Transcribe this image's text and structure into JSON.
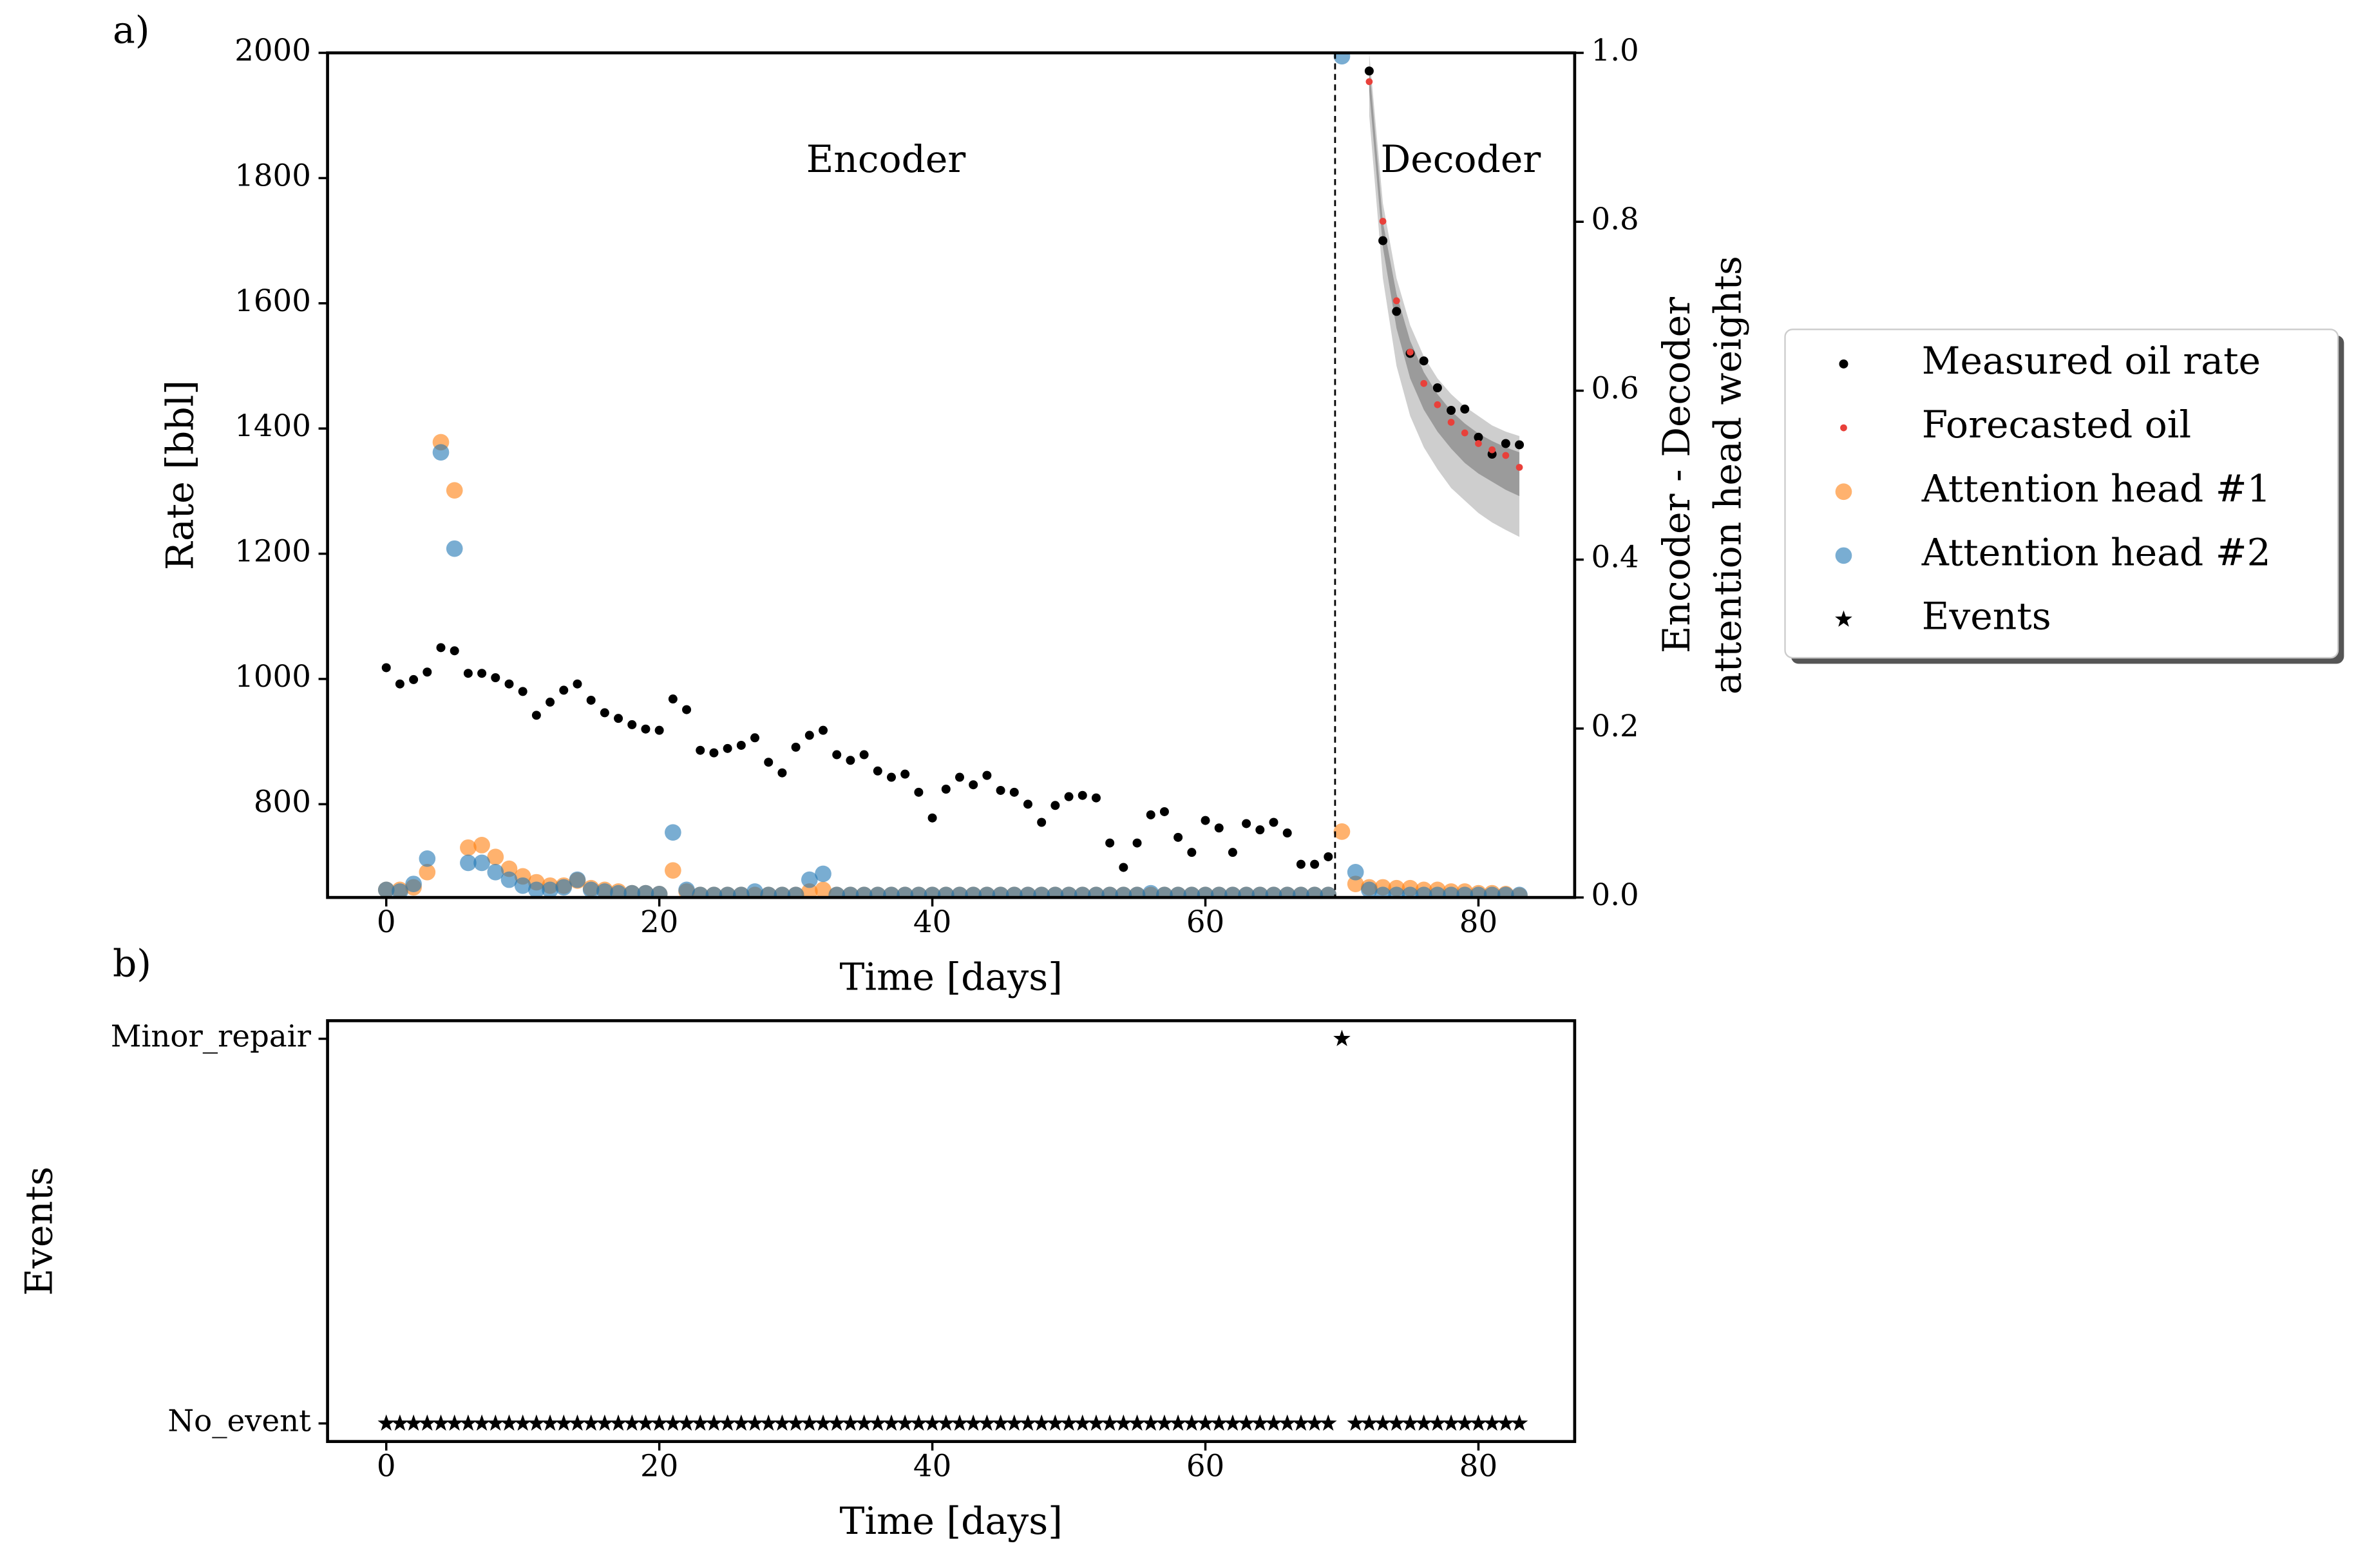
{
  "chart_data": [
    {
      "type": "scatter",
      "panel_label": "a)",
      "xlabel": "Time [days]",
      "ylabel": "Rate [bbl]",
      "y2label": [
        "Encoder - Decoder",
        "attention head weights"
      ],
      "xlim": [
        -4.3,
        87.05
      ],
      "xticks": [
        0,
        20,
        40,
        60,
        80
      ],
      "ylim": [
        651,
        2000
      ],
      "yticks": [
        800,
        1000,
        1200,
        1400,
        1600,
        1800,
        2000
      ],
      "y2lim": [
        0,
        1
      ],
      "y2ticks": [
        {
          "value": 0,
          "label": "0.0"
        },
        {
          "value": 0.2,
          "label": "0.2"
        },
        {
          "value": 0.4,
          "label": "0.4"
        },
        {
          "value": 0.6,
          "label": "0.6"
        },
        {
          "value": 0.8,
          "label": "0.8"
        },
        {
          "value": 1,
          "label": "1.0"
        }
      ],
      "grid": false,
      "vline": 69.5,
      "annotations": [
        {
          "text": "Encoder",
          "x": 36.6,
          "y": 1825
        },
        {
          "text": "Decoder",
          "x": 78.7,
          "y": 1825
        }
      ],
      "x": [
        0,
        1,
        2,
        3,
        4,
        5,
        6,
        7,
        8,
        9,
        10,
        11,
        12,
        13,
        14,
        15,
        16,
        17,
        18,
        19,
        20,
        21,
        22,
        23,
        24,
        25,
        26,
        27,
        28,
        29,
        30,
        31,
        32,
        33,
        34,
        35,
        36,
        37,
        38,
        39,
        40,
        41,
        42,
        43,
        44,
        45,
        46,
        47,
        48,
        49,
        50,
        51,
        52,
        53,
        54,
        55,
        56,
        57,
        58,
        59,
        60,
        61,
        62,
        63,
        64,
        65,
        66,
        67,
        68,
        69,
        70,
        71,
        72,
        73,
        74,
        75,
        76,
        77,
        78,
        79,
        80,
        81,
        82,
        83
      ],
      "bands": [
        {
          "color": "#bdbdbd",
          "x": [
            72,
            73,
            74,
            75,
            76,
            77,
            78,
            79,
            80,
            81,
            82,
            83
          ],
          "lower": [
            1900,
            1640,
            1500,
            1420,
            1370,
            1335,
            1305,
            1285,
            1265,
            1250,
            1238,
            1227
          ],
          "upper": [
            2000,
            1760,
            1640,
            1565,
            1515,
            1480,
            1455,
            1435,
            1420,
            1405,
            1395,
            1388
          ]
        },
        {
          "color": "#8a8a8a",
          "x": [
            72,
            73,
            74,
            75,
            76,
            77,
            78,
            79,
            80,
            81,
            82,
            83
          ],
          "lower": [
            1940,
            1690,
            1560,
            1480,
            1430,
            1395,
            1368,
            1345,
            1328,
            1315,
            1302,
            1292
          ],
          "upper": [
            1980,
            1730,
            1615,
            1540,
            1490,
            1455,
            1428,
            1408,
            1392,
            1380,
            1370,
            1362
          ]
        }
      ],
      "series": [
        {
          "name": "Measured oil rate",
          "color": "#000000",
          "marker": "dot",
          "values": [
            1018,
            992,
            999,
            1011,
            1050,
            1045,
            1009,
            1009,
            1002,
            992,
            980,
            942,
            963,
            982,
            992,
            966,
            946,
            937,
            927,
            920,
            918,
            968,
            951,
            886,
            882,
            889,
            894,
            906,
            867,
            850,
            891,
            910,
            918,
            879,
            870,
            879,
            853,
            843,
            848,
            819,
            778,
            824,
            843,
            831,
            846,
            822,
            819,
            800,
            771,
            798,
            812,
            814,
            810,
            738,
            699,
            738,
            783,
            788,
            747,
            723,
            774,
            762,
            723,
            769,
            759,
            771,
            754,
            704,
            704,
            716,
            null,
            null,
            1971,
            1700,
            1587,
            1520,
            1508,
            1465,
            1429,
            1431,
            1386,
            1359,
            1376,
            1374
          ]
        },
        {
          "name": "Forecasted oil",
          "color": "#e8403a",
          "marker": "small",
          "values": [
            null,
            null,
            null,
            null,
            null,
            null,
            null,
            null,
            null,
            null,
            null,
            null,
            null,
            null,
            null,
            null,
            null,
            null,
            null,
            null,
            null,
            null,
            null,
            null,
            null,
            null,
            null,
            null,
            null,
            null,
            null,
            null,
            null,
            null,
            null,
            null,
            null,
            null,
            null,
            null,
            null,
            null,
            null,
            null,
            null,
            null,
            null,
            null,
            null,
            null,
            null,
            null,
            null,
            null,
            null,
            null,
            null,
            null,
            null,
            null,
            null,
            null,
            null,
            null,
            null,
            null,
            null,
            null,
            null,
            null,
            null,
            null,
            1954,
            1731,
            1604,
            1522,
            1472,
            1438,
            1410,
            1393,
            1376,
            1366,
            1357,
            1338
          ]
        },
        {
          "name": "Attention head #1",
          "color": "#ff7f0e",
          "marker": "circle",
          "axis": "y2",
          "values": [
            0.009,
            0.009,
            0.012,
            0.03,
            0.539,
            0.482,
            0.059,
            0.062,
            0.048,
            0.034,
            0.025,
            0.018,
            0.014,
            0.014,
            0.02,
            0.011,
            0.009,
            0.007,
            0.005,
            0.005,
            0.004,
            0.032,
            0.007,
            0.003,
            0.003,
            0.003,
            0.003,
            0.003,
            0.003,
            0.003,
            0.003,
            0.007,
            0.009,
            0.003,
            0.003,
            0.003,
            0.003,
            0.003,
            0.003,
            0.003,
            0.003,
            0.003,
            0.003,
            0.003,
            0.003,
            0.003,
            0.003,
            0.003,
            0.003,
            0.003,
            0.003,
            0.003,
            0.003,
            0.003,
            0.003,
            0.003,
            0.003,
            0.003,
            0.003,
            0.003,
            0.003,
            0.003,
            0.003,
            0.003,
            0.003,
            0.003,
            0.003,
            0.003,
            0.003,
            0.003,
            0.078,
            0.016,
            0.012,
            0.012,
            0.011,
            0.011,
            0.009,
            0.009,
            0.007,
            0.007,
            0.005,
            0.005,
            0.004,
            0.002
          ]
        },
        {
          "name": "Attention head #2",
          "color": "#1f77b4",
          "marker": "circle",
          "axis": "y2",
          "values": [
            0.009,
            0.007,
            0.016,
            0.046,
            0.527,
            0.413,
            0.041,
            0.041,
            0.03,
            0.021,
            0.014,
            0.009,
            0.009,
            0.012,
            0.021,
            0.009,
            0.007,
            0.005,
            0.005,
            0.005,
            0.004,
            0.077,
            0.009,
            0.003,
            0.003,
            0.003,
            0.003,
            0.007,
            0.003,
            0.003,
            0.003,
            0.021,
            0.028,
            0.003,
            0.003,
            0.003,
            0.003,
            0.003,
            0.003,
            0.003,
            0.003,
            0.003,
            0.003,
            0.003,
            0.003,
            0.003,
            0.003,
            0.003,
            0.003,
            0.003,
            0.003,
            0.003,
            0.003,
            0.003,
            0.003,
            0.003,
            0.005,
            0.003,
            0.003,
            0.003,
            0.003,
            0.003,
            0.003,
            0.003,
            0.003,
            0.003,
            0.003,
            0.003,
            0.003,
            0.003,
            0.996,
            0.03,
            0.009,
            0.003,
            0.003,
            0.003,
            0.003,
            0.003,
            0.003,
            0.003,
            0.003,
            0.003,
            0.003,
            0.003
          ]
        }
      ]
    },
    {
      "type": "scatter",
      "panel_label": "b)",
      "xlabel": "Time [days]",
      "ylabel": "Events",
      "xlim": [
        -4.3,
        87.05
      ],
      "xticks": [
        0,
        20,
        40,
        60,
        80
      ],
      "ylim": [
        -0.047,
        1.047
      ],
      "yticks": [
        {
          "value": 0,
          "label": "No_event"
        },
        {
          "value": 1,
          "label": "Minor_repair"
        }
      ],
      "grid": false,
      "x": [
        0,
        1,
        2,
        3,
        4,
        5,
        6,
        7,
        8,
        9,
        10,
        11,
        12,
        13,
        14,
        15,
        16,
        17,
        18,
        19,
        20,
        21,
        22,
        23,
        24,
        25,
        26,
        27,
        28,
        29,
        30,
        31,
        32,
        33,
        34,
        35,
        36,
        37,
        38,
        39,
        40,
        41,
        42,
        43,
        44,
        45,
        46,
        47,
        48,
        49,
        50,
        51,
        52,
        53,
        54,
        55,
        56,
        57,
        58,
        59,
        60,
        61,
        62,
        63,
        64,
        65,
        66,
        67,
        68,
        69,
        70,
        71,
        72,
        73,
        74,
        75,
        76,
        77,
        78,
        79,
        80,
        81,
        82,
        83
      ],
      "series": [
        {
          "name": "Events",
          "color": "#000000",
          "marker": "star",
          "values": [
            0,
            0,
            0,
            0,
            0,
            0,
            0,
            0,
            0,
            0,
            0,
            0,
            0,
            0,
            0,
            0,
            0,
            0,
            0,
            0,
            0,
            0,
            0,
            0,
            0,
            0,
            0,
            0,
            0,
            0,
            0,
            0,
            0,
            0,
            0,
            0,
            0,
            0,
            0,
            0,
            0,
            0,
            0,
            0,
            0,
            0,
            0,
            0,
            0,
            0,
            0,
            0,
            0,
            0,
            0,
            0,
            0,
            0,
            0,
            0,
            0,
            0,
            0,
            0,
            0,
            0,
            0,
            0,
            0,
            0,
            1,
            0,
            0,
            0,
            0,
            0,
            0,
            0,
            0,
            0,
            0,
            0,
            0,
            0
          ]
        }
      ]
    }
  ],
  "legend": {
    "position": "right"
  }
}
